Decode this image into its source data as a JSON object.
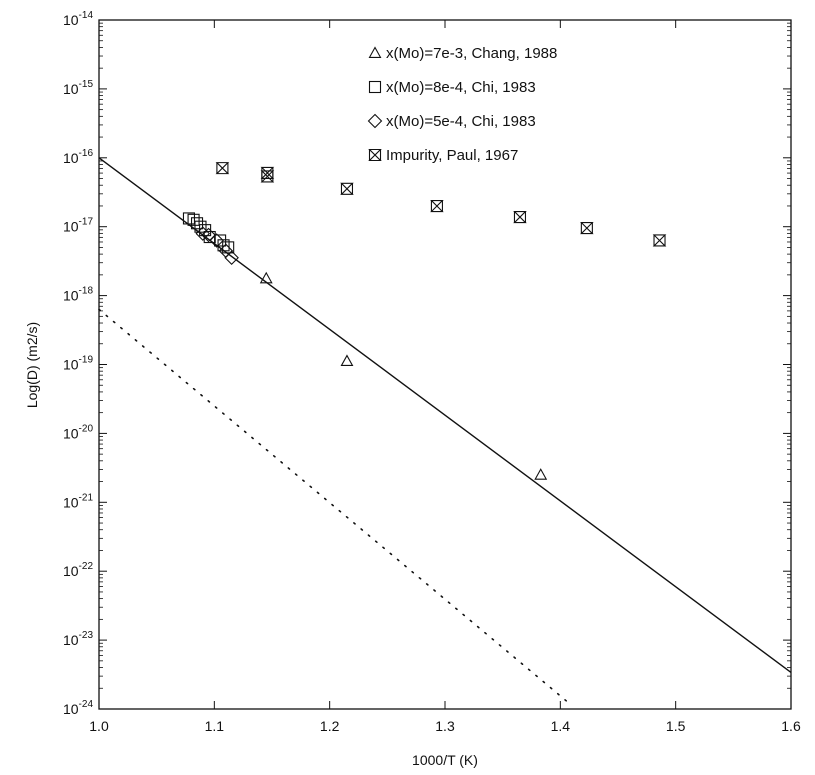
{
  "chart_data": {
    "type": "scatter",
    "title": "",
    "xlabel": "1000/T (K)",
    "ylabel": "Log(D) (m2/s)",
    "xlim": [
      1.0,
      1.6
    ],
    "ylim_exponent": [
      -24,
      -14
    ],
    "y_scale": "log",
    "x_ticks": [
      "1.0",
      "1.1",
      "1.2",
      "1.3",
      "1.4",
      "1.5",
      "1.6"
    ],
    "y_ticks": [
      {
        "base": "10",
        "exp": "-14",
        "value": -14
      },
      {
        "base": "10",
        "exp": "-15",
        "value": -15
      },
      {
        "base": "10",
        "exp": "-16",
        "value": -16
      },
      {
        "base": "10",
        "exp": "-17",
        "value": -17
      },
      {
        "base": "10",
        "exp": "-18",
        "value": -18
      },
      {
        "base": "10",
        "exp": "-19",
        "value": -19
      },
      {
        "base": "10",
        "exp": "-20",
        "value": -20
      },
      {
        "base": "10",
        "exp": "-21",
        "value": -21
      },
      {
        "base": "10",
        "exp": "-22",
        "value": -22
      },
      {
        "base": "10",
        "exp": "-23",
        "value": -23
      },
      {
        "base": "10",
        "exp": "-24",
        "value": -24
      }
    ],
    "grid": false,
    "legend_position": "top-right",
    "series": [
      {
        "name": "x(Mo)=7e-3, Chang, 1988",
        "marker": "triangle",
        "log10_D": [
          [
            1.145,
            -17.75
          ],
          [
            1.215,
            -18.95
          ],
          [
            1.383,
            -20.6
          ]
        ]
      },
      {
        "name": "x(Mo)=8e-4, Chi, 1983",
        "marker": "square",
        "log10_D": [
          [
            1.078,
            -16.88
          ],
          [
            1.082,
            -16.9
          ],
          [
            1.085,
            -16.95
          ],
          [
            1.088,
            -17.0
          ],
          [
            1.092,
            -17.05
          ],
          [
            1.096,
            -17.15
          ],
          [
            1.105,
            -17.2
          ],
          [
            1.108,
            -17.27
          ],
          [
            1.112,
            -17.3
          ]
        ]
      },
      {
        "name": "x(Mo)=5e-4, Chi, 1983",
        "marker": "diamond",
        "log10_D": [
          [
            1.09,
            -17.1
          ],
          [
            1.095,
            -17.12
          ],
          [
            1.102,
            -17.2
          ],
          [
            1.11,
            -17.35
          ],
          [
            1.115,
            -17.45
          ]
        ]
      },
      {
        "name": "Impurity, Paul, 1967",
        "marker": "hourglass",
        "log10_D": [
          [
            1.107,
            -16.15
          ],
          [
            1.146,
            -16.22
          ],
          [
            1.146,
            -16.27
          ],
          [
            1.215,
            -16.45
          ],
          [
            1.293,
            -16.7
          ],
          [
            1.365,
            -16.86
          ],
          [
            1.423,
            -17.02
          ],
          [
            1.486,
            -17.2
          ]
        ]
      }
    ],
    "lines": [
      {
        "style": "solid",
        "log10_D": [
          [
            1.0,
            -16.0
          ],
          [
            1.6,
            -23.47
          ]
        ]
      },
      {
        "style": "dotted",
        "log10_D": [
          [
            1.0,
            -18.2
          ],
          [
            1.41,
            -23.95
          ]
        ]
      }
    ]
  }
}
